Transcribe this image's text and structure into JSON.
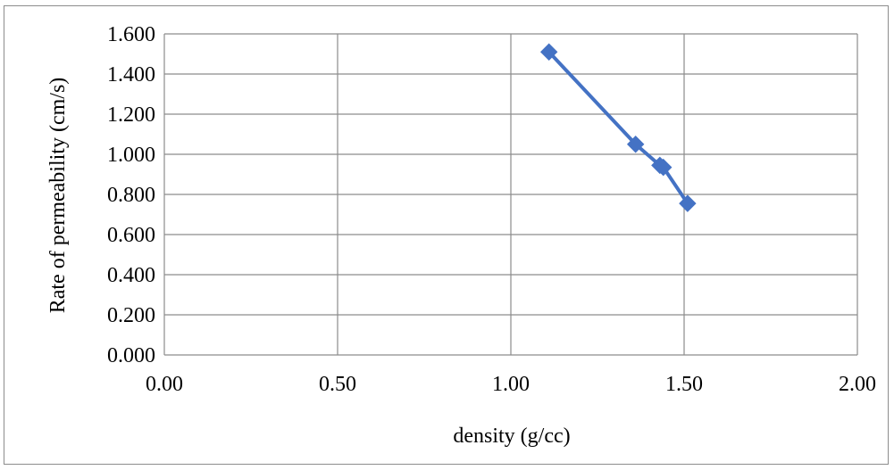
{
  "chart_data": {
    "type": "scatter",
    "title": "",
    "xlabel": "density (g/cc)",
    "ylabel": "Rate of permeability (cm/s)",
    "xlim": [
      0,
      2
    ],
    "ylim": [
      0,
      1.6
    ],
    "x_ticks": [
      "0.00",
      "0.50",
      "1.00",
      "1.50",
      "2.00"
    ],
    "y_ticks": [
      "0.000",
      "0.200",
      "0.400",
      "0.600",
      "0.800",
      "1.000",
      "1.200",
      "1.400",
      "1.600"
    ],
    "grid": true,
    "legend": "none",
    "marker": "diamond",
    "lines": true,
    "series": [
      {
        "color": "#4472C4",
        "x": [
          1.11,
          1.36,
          1.43,
          1.44,
          1.51
        ],
        "y": [
          1.51,
          1.05,
          0.945,
          0.935,
          0.755
        ]
      }
    ]
  }
}
